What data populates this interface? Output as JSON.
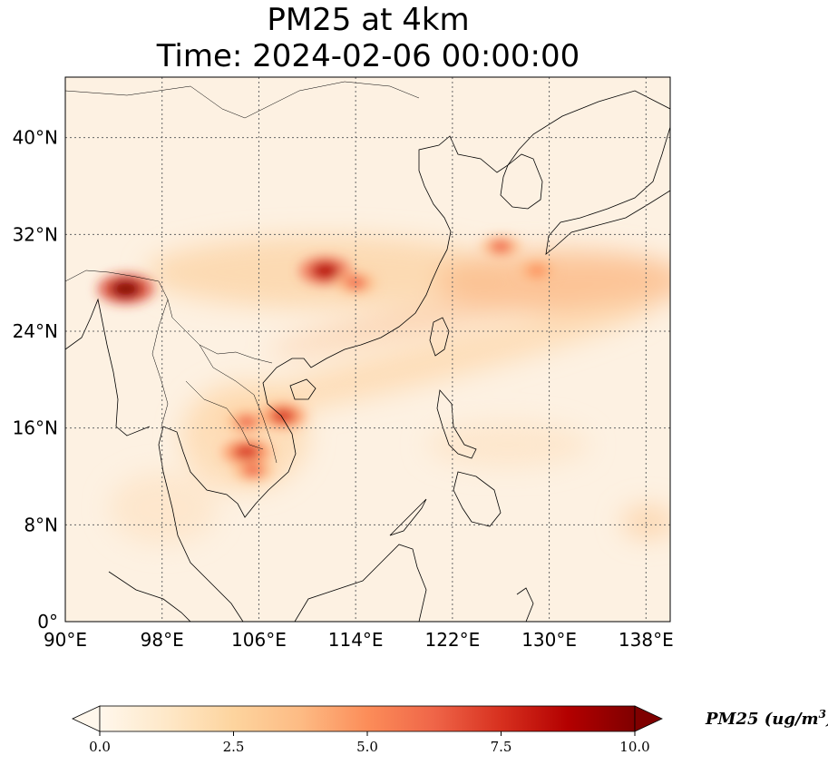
{
  "title": {
    "line1": "PM25 at 4km",
    "line2": "Time: 2024-02-06 00:00:00"
  },
  "map": {
    "variable": "PM25",
    "resolution": "4km",
    "time": "2024-02-06 00:00:00",
    "lon_range": [
      90,
      140
    ],
    "lat_range": [
      0,
      45
    ],
    "gridlines": true,
    "lon_ticks": [
      "90°E",
      "98°E",
      "106°E",
      "114°E",
      "122°E",
      "130°E",
      "138°E"
    ],
    "lon_tick_values": [
      90,
      98,
      106,
      114,
      122,
      130,
      138
    ],
    "lat_ticks": [
      "0°",
      "8°N",
      "16°N",
      "24°N",
      "32°N",
      "40°N"
    ],
    "lat_tick_values": [
      0,
      8,
      16,
      24,
      32,
      40
    ],
    "colormap": "OrRd",
    "colors": [
      "#fff7ec",
      "#fee8c8",
      "#fdd49e",
      "#fdbb84",
      "#fc8d59",
      "#ef6548",
      "#d7301f",
      "#b30000",
      "#7f0000"
    ],
    "hotspots": [
      {
        "lon": 95,
        "lat": 27.5,
        "level": 10
      },
      {
        "lon": 111.5,
        "lat": 29,
        "level": 9
      },
      {
        "lon": 114,
        "lat": 28,
        "level": 6
      },
      {
        "lon": 105,
        "lat": 14,
        "level": 8
      },
      {
        "lon": 105.5,
        "lat": 12.5,
        "level": 6
      },
      {
        "lon": 108,
        "lat": 17,
        "level": 7
      },
      {
        "lon": 105,
        "lat": 16.5,
        "level": 6
      },
      {
        "lon": 126,
        "lat": 31,
        "level": 6
      },
      {
        "lon": 129,
        "lat": 29,
        "level": 5
      }
    ]
  },
  "colorbar": {
    "label": "PM25 (ug/m",
    "label_exponent": "3",
    "label_close": ")",
    "ticks": [
      "0.0",
      "2.5",
      "5.0",
      "7.5",
      "10.0"
    ],
    "tick_values": [
      0,
      2.5,
      5,
      7.5,
      10
    ],
    "vmin": 0,
    "vmax": 10,
    "extend": "both"
  }
}
